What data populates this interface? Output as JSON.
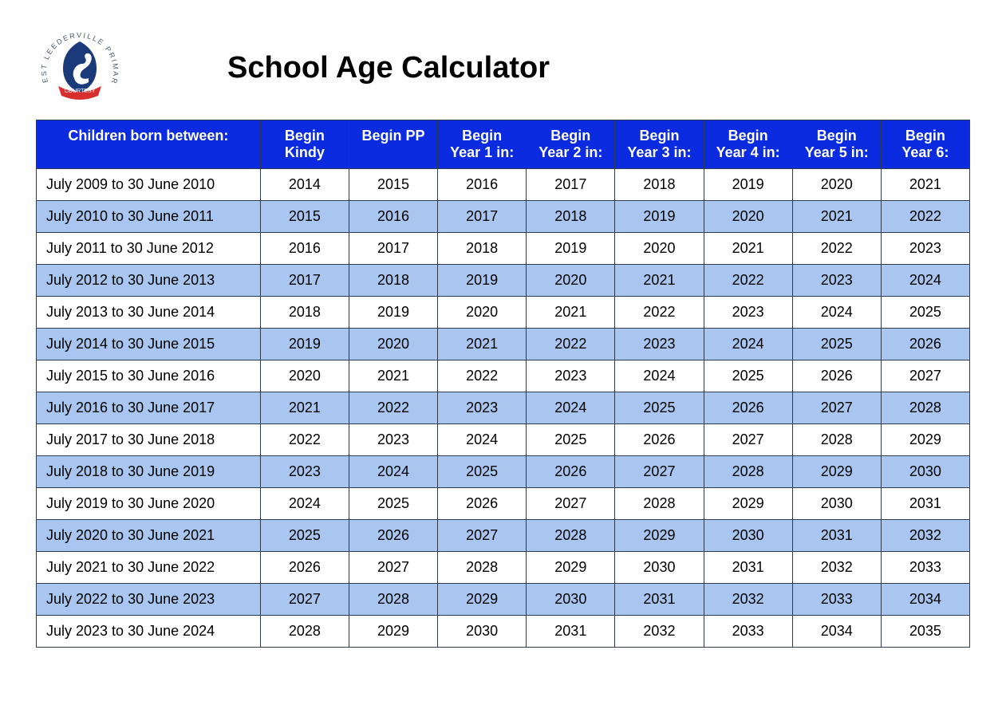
{
  "title": "School Age Calculator",
  "logo": {
    "outer_text": "WEST LEEDERVILLE PRIMARY",
    "banner_text": "COURTESY",
    "main_color": "#1b3a7a",
    "banner_color": "#d92e2e",
    "text_color": "#4a5a6a"
  },
  "table": {
    "header_bg": "#0b2be0",
    "header_fg": "#ffffff",
    "row_odd_bg": "#ffffff",
    "row_even_bg": "#a8c6f0",
    "border_color": "#2f3a4a",
    "columns": [
      "Children born between:",
      "Begin Kindy",
      "Begin PP",
      "Begin Year 1 in:",
      "Begin Year 2 in:",
      "Begin Year 3 in:",
      "Begin Year 4 in:",
      "Begin Year 5 in:",
      "Begin Year 6:"
    ],
    "rows": [
      [
        "July 2009 to 30 June 2010",
        "2014",
        "2015",
        "2016",
        "2017",
        "2018",
        "2019",
        "2020",
        "2021"
      ],
      [
        "July 2010 to 30 June 2011",
        "2015",
        "2016",
        "2017",
        "2018",
        "2019",
        "2020",
        "2021",
        "2022"
      ],
      [
        "July 2011 to 30 June 2012",
        "2016",
        "2017",
        "2018",
        "2019",
        "2020",
        "2021",
        "2022",
        "2023"
      ],
      [
        "July 2012 to 30 June 2013",
        "2017",
        "2018",
        "2019",
        "2020",
        "2021",
        "2022",
        "2023",
        "2024"
      ],
      [
        "July 2013 to 30 June 2014",
        "2018",
        "2019",
        "2020",
        "2021",
        "2022",
        "2023",
        "2024",
        "2025"
      ],
      [
        "July 2014 to 30 June 2015",
        "2019",
        "2020",
        "2021",
        "2022",
        "2023",
        "2024",
        "2025",
        "2026"
      ],
      [
        "July 2015 to 30 June 2016",
        "2020",
        "2021",
        "2022",
        "2023",
        "2024",
        "2025",
        "2026",
        "2027"
      ],
      [
        "July 2016 to 30 June 2017",
        "2021",
        "2022",
        "2023",
        "2024",
        "2025",
        "2026",
        "2027",
        "2028"
      ],
      [
        "July 2017 to 30 June 2018",
        "2022",
        "2023",
        "2024",
        "2025",
        "2026",
        "2027",
        "2028",
        "2029"
      ],
      [
        "July 2018 to 30 June 2019",
        "2023",
        "2024",
        "2025",
        "2026",
        "2027",
        "2028",
        "2029",
        "2030"
      ],
      [
        "July 2019 to 30 June 2020",
        "2024",
        "2025",
        "2026",
        "2027",
        "2028",
        "2029",
        "2030",
        "2031"
      ],
      [
        "July 2020 to 30 June 2021",
        "2025",
        "2026",
        "2027",
        "2028",
        "2029",
        "2030",
        "2031",
        "2032"
      ],
      [
        "July 2021 to 30 June 2022",
        "2026",
        "2027",
        "2028",
        "2029",
        "2030",
        "2031",
        "2032",
        "2033"
      ],
      [
        "July 2022 to 30 June 2023",
        "2027",
        "2028",
        "2029",
        "2030",
        "2031",
        "2032",
        "2033",
        "2034"
      ],
      [
        "July 2023 to 30 June 2024",
        "2028",
        "2029",
        "2030",
        "2031",
        "2032",
        "2033",
        "2034",
        "2035"
      ]
    ]
  }
}
